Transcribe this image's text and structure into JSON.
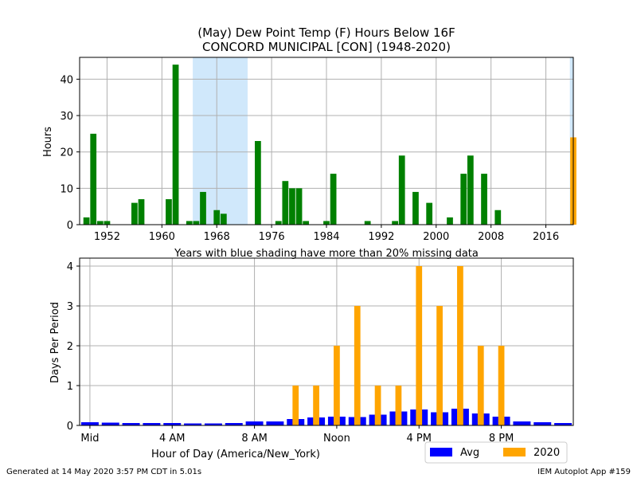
{
  "chart_data": [
    {
      "type": "bar",
      "title": "(May) Dew Point Temp (F) Hours Below 16F",
      "subtitle": "CONCORD MUNICIPAL [CON] (1948-2020)",
      "xlabel": "",
      "ylabel": "Hours",
      "xlim": [
        1948,
        2020
      ],
      "ylim": [
        0,
        46
      ],
      "xticks": [
        1952,
        1960,
        1968,
        1976,
        1984,
        1992,
        2000,
        2008,
        2016
      ],
      "yticks": [
        0,
        10,
        20,
        30,
        40
      ],
      "grid": true,
      "note": "Years with blue shading have more than 20% missing data",
      "missing_data_ranges": [
        [
          1964.5,
          1972.5
        ],
        [
          2019.5,
          2020.5
        ]
      ],
      "colors": {
        "bars": "#008000",
        "highlight": "#ffa500",
        "missing_shade": "#d0e8fb"
      },
      "series": [
        {
          "x": [
            1949,
            1950,
            1951,
            1952,
            1956,
            1957,
            1961,
            1962,
            1964,
            1965,
            1966,
            1968,
            1969,
            1974,
            1977,
            1978,
            1979,
            1980,
            1981,
            1984,
            1985,
            1990,
            1994,
            1995,
            1997,
            1999,
            2002,
            2004,
            2005,
            2007,
            2009,
            2020
          ],
          "values": [
            2,
            25,
            1,
            1,
            6,
            7,
            7,
            44,
            1,
            1,
            9,
            4,
            3,
            23,
            1,
            12,
            10,
            10,
            1,
            1,
            14,
            1,
            1,
            19,
            9,
            6,
            2,
            14,
            19,
            14,
            4,
            24
          ],
          "colors": [
            "green",
            "green",
            "green",
            "green",
            "green",
            "green",
            "green",
            "green",
            "green",
            "green",
            "green",
            "green",
            "green",
            "green",
            "green",
            "green",
            "green",
            "green",
            "green",
            "green",
            "green",
            "green",
            "green",
            "green",
            "green",
            "green",
            "green",
            "green",
            "green",
            "green",
            "green",
            "orange"
          ]
        }
      ]
    },
    {
      "type": "bar",
      "xlabel": "Hour of Day (America/New_York)",
      "ylabel": "Days Per Period",
      "xlim": [
        -0.5,
        23.5
      ],
      "ylim": [
        0,
        4.2
      ],
      "xticks": [
        0,
        4,
        8,
        12,
        16,
        20
      ],
      "xtick_labels": [
        "Mid",
        "4 AM",
        "8 AM",
        "Noon",
        "4 PM",
        "8 PM"
      ],
      "yticks": [
        0,
        1,
        2,
        3,
        4
      ],
      "grid": true,
      "legend_position": "bottom-right",
      "categories": [
        0,
        1,
        2,
        3,
        4,
        5,
        6,
        7,
        8,
        9,
        10,
        11,
        12,
        13,
        14,
        15,
        16,
        17,
        18,
        19,
        20,
        21,
        22,
        23
      ],
      "series": [
        {
          "name": "Avg",
          "color": "#0000ff",
          "values": [
            0.08,
            0.07,
            0.06,
            0.06,
            0.06,
            0.05,
            0.05,
            0.06,
            0.1,
            0.1,
            0.16,
            0.2,
            0.22,
            0.21,
            0.27,
            0.35,
            0.4,
            0.33,
            0.42,
            0.3,
            0.22,
            0.1,
            0.08,
            0.06
          ]
        },
        {
          "name": "2020",
          "color": "#ffa500",
          "values": [
            0,
            0,
            0,
            0,
            0,
            0,
            0,
            0,
            0,
            0,
            1,
            1,
            2,
            3,
            1,
            1,
            4,
            3,
            4,
            2,
            2,
            0,
            0,
            0
          ]
        }
      ]
    }
  ],
  "footer": {
    "generated": "Generated at 14 May 2020 3:57 PM CDT in 5.01s",
    "app": "IEM Autoplot App #159"
  }
}
